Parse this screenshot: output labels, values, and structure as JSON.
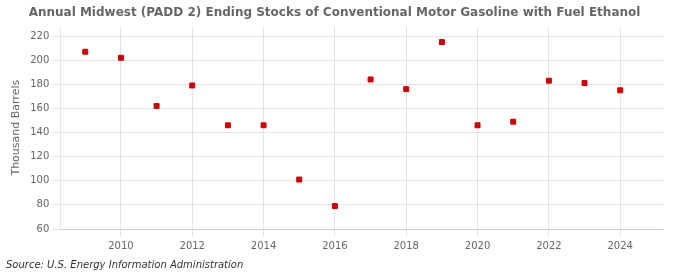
{
  "chart_data": {
    "type": "scatter",
    "title": "Annual Midwest (PADD 2) Ending Stocks of Conventional Motor Gasoline with Fuel Ethanol",
    "ylabel": "Thousand Barrels",
    "annotation": "Source: U.S. Energy Information Administration",
    "x": [
      2009,
      2010,
      2011,
      2012,
      2013,
      2014,
      2015,
      2016,
      2017,
      2018,
      2019,
      2020,
      2021,
      2022,
      2023,
      2024
    ],
    "values": [
      207,
      202,
      162,
      179,
      146,
      146,
      101,
      79,
      184,
      176,
      215,
      146,
      149,
      183,
      181,
      175
    ],
    "color": "#cc0000",
    "marker": "square",
    "xlim": [
      2008.3,
      2025.2
    ],
    "xticks": [
      2010,
      2012,
      2014,
      2016,
      2018,
      2020,
      2022,
      2024
    ],
    "ylim": [
      60,
      228
    ],
    "yticks": [
      60,
      80,
      100,
      120,
      140,
      160,
      180,
      200,
      220
    ],
    "grid": true
  }
}
